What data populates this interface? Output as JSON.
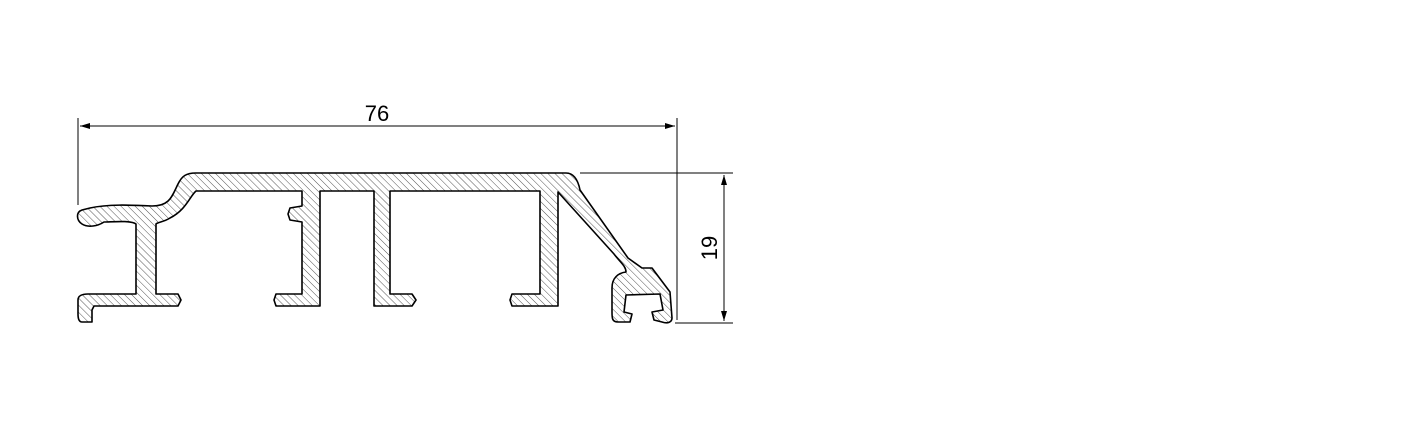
{
  "drawing": {
    "dimensions": {
      "width_label": "76",
      "height_label": "19"
    },
    "colors": {
      "line": "#000000",
      "hatch": "#555555",
      "background": "#ffffff"
    }
  }
}
